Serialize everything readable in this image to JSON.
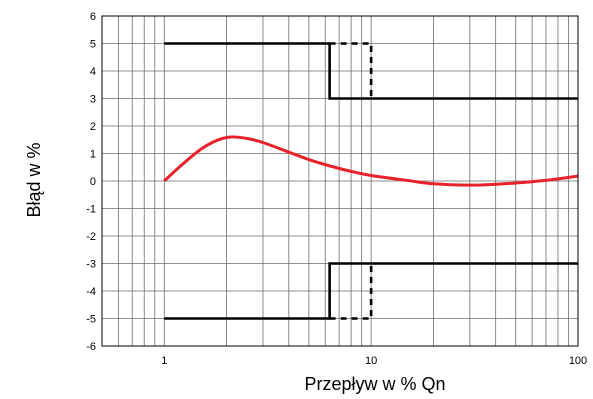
{
  "chart_data": {
    "type": "line",
    "title": "",
    "xlabel": "Przepływ w % Qn",
    "ylabel": "Błąd w %",
    "x_scale": "log",
    "xlim": [
      0.5,
      100
    ],
    "ylim": [
      -6,
      6
    ],
    "grid": true,
    "x_ticks": [
      {
        "value": 1,
        "label": "1"
      },
      {
        "value": 10,
        "label": "10"
      },
      {
        "value": 100,
        "label": "100"
      }
    ],
    "y_ticks": [
      {
        "value": 6,
        "label": "6"
      },
      {
        "value": 5,
        "label": "5"
      },
      {
        "value": 4,
        "label": "4"
      },
      {
        "value": 3,
        "label": "3"
      },
      {
        "value": 2,
        "label": "2"
      },
      {
        "value": 1,
        "label": "1"
      },
      {
        "value": 0,
        "label": "0"
      },
      {
        "value": -1,
        "label": "-1"
      },
      {
        "value": -2,
        "label": "-2"
      },
      {
        "value": -3,
        "label": "-3"
      },
      {
        "value": -4,
        "label": "-4"
      },
      {
        "value": -5,
        "label": "-5"
      },
      {
        "value": -6,
        "label": "-6"
      }
    ],
    "series": [
      {
        "style": "solid",
        "color": "#000000",
        "points": [
          [
            1,
            5
          ],
          [
            6.3,
            5
          ],
          [
            6.3,
            3
          ],
          [
            100,
            3
          ]
        ]
      },
      {
        "style": "dashed",
        "color": "#000000",
        "points": [
          [
            6.3,
            5
          ],
          [
            10,
            5
          ],
          [
            10,
            3
          ]
        ]
      },
      {
        "style": "solid",
        "color": "#000000",
        "points": [
          [
            1,
            -5
          ],
          [
            6.3,
            -5
          ],
          [
            6.3,
            -3
          ],
          [
            100,
            -3
          ]
        ]
      },
      {
        "style": "dashed",
        "color": "#000000",
        "points": [
          [
            6.3,
            -5
          ],
          [
            10,
            -5
          ],
          [
            10,
            -3
          ]
        ]
      },
      {
        "style": "solid",
        "color": "#e8222a",
        "points": [
          [
            1,
            0
          ],
          [
            1.2,
            0.55
          ],
          [
            1.5,
            1.15
          ],
          [
            1.8,
            1.48
          ],
          [
            2.1,
            1.6
          ],
          [
            2.5,
            1.55
          ],
          [
            3,
            1.4
          ],
          [
            4,
            1.05
          ],
          [
            5,
            0.78
          ],
          [
            6.3,
            0.55
          ],
          [
            8,
            0.35
          ],
          [
            10,
            0.2
          ],
          [
            15,
            0.02
          ],
          [
            20,
            -0.1
          ],
          [
            30,
            -0.15
          ],
          [
            40,
            -0.12
          ],
          [
            55,
            -0.05
          ],
          [
            75,
            0.05
          ],
          [
            100,
            0.18
          ]
        ]
      }
    ]
  }
}
